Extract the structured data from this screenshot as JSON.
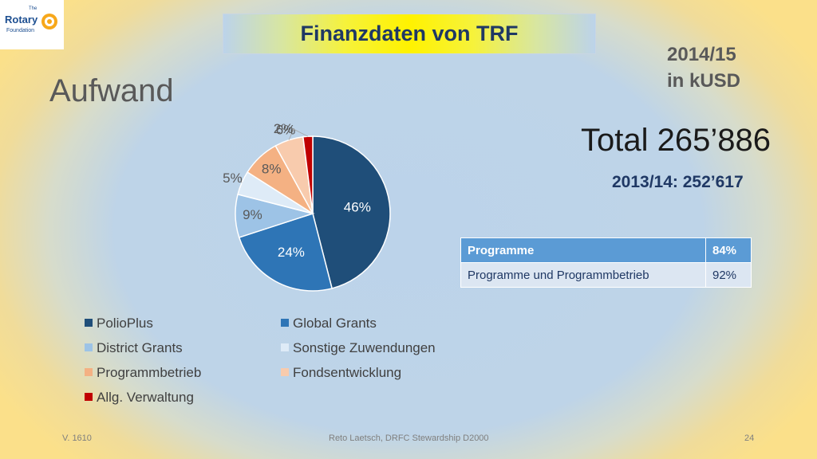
{
  "logo": {
    "the": "The",
    "name": "Rotary",
    "sub": "Foundation"
  },
  "banner_title": "Finanzdaten von TRF",
  "period": {
    "year": "2014/15",
    "unit": "in kUSD"
  },
  "heading": "Aufwand",
  "total": "Total 265’886",
  "previous": "2013/14: 252’617",
  "table": {
    "rows": [
      {
        "label": "Programme",
        "value": "84%"
      },
      {
        "label": "Programme und Programmbetrieb",
        "value": "92%"
      }
    ]
  },
  "colors": {
    "polio": "#1f4e79",
    "global": "#2e75b6",
    "district": "#9dc3e6",
    "sonstige": "#deebf7",
    "programm": "#f4b183",
    "fonds": "#f8cbad",
    "verwaltung": "#c00000"
  },
  "chart_data": {
    "type": "pie",
    "title": "",
    "unit": "%",
    "legend_position": "bottom",
    "slices": [
      {
        "name": "PolioPlus",
        "value": 46,
        "label": "46%",
        "color": "#1f4e79"
      },
      {
        "name": "Global Grants",
        "value": 24,
        "label": "24%",
        "color": "#2e75b6"
      },
      {
        "name": "District Grants",
        "value": 9,
        "label": "9%",
        "color": "#9dc3e6"
      },
      {
        "name": "Sonstige Zuwendungen",
        "value": 5,
        "label": "5%",
        "color": "#deebf7"
      },
      {
        "name": "Programmbetrieb",
        "value": 8,
        "label": "8%",
        "color": "#f4b183"
      },
      {
        "name": "Fondsentwicklung",
        "value": 6,
        "label": "6%",
        "color": "#f8cbad"
      },
      {
        "name": "Allg. Verwaltung",
        "value": 2,
        "label": "2%",
        "color": "#c00000"
      }
    ]
  },
  "footer": {
    "version": "V. 1610",
    "author": "Reto Laetsch, DRFC Stewardship D2000",
    "page": "24"
  }
}
